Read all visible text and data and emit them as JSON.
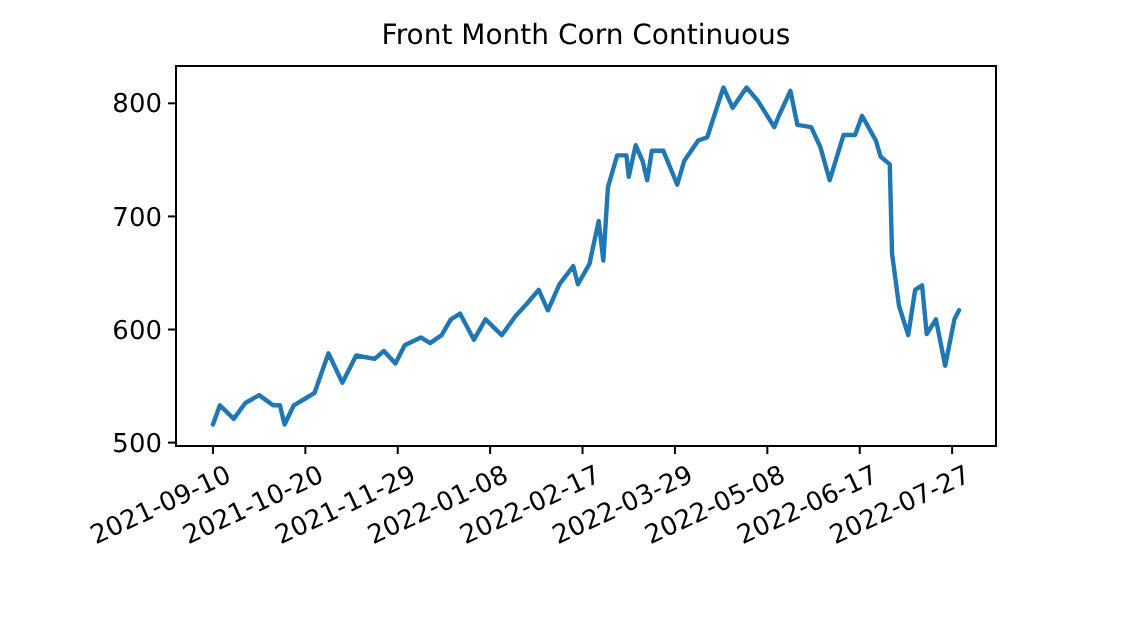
{
  "chart_data": {
    "type": "line",
    "title": "Front Month Corn Continuous",
    "x": [
      "2021-09-10",
      "2021-09-13",
      "2021-09-19",
      "2021-09-24",
      "2021-09-30",
      "2021-10-06",
      "2021-10-09",
      "2021-10-11",
      "2021-10-15",
      "2021-10-20",
      "2021-10-24",
      "2021-10-30",
      "2021-11-05",
      "2021-11-11",
      "2021-11-19",
      "2021-11-23",
      "2021-11-28",
      "2021-12-02",
      "2021-12-09",
      "2021-12-13",
      "2021-12-18",
      "2021-12-22",
      "2021-12-26",
      "2022-01-01",
      "2022-01-06",
      "2022-01-13",
      "2022-01-19",
      "2022-01-24",
      "2022-01-29",
      "2022-02-02",
      "2022-02-07",
      "2022-02-13",
      "2022-02-15",
      "2022-02-20",
      "2022-02-24",
      "2022-02-26",
      "2022-02-28",
      "2022-03-04",
      "2022-03-08",
      "2022-03-09",
      "2022-03-12",
      "2022-03-15",
      "2022-03-17",
      "2022-03-19",
      "2022-03-24",
      "2022-03-30",
      "2022-04-02",
      "2022-04-08",
      "2022-04-12",
      "2022-04-15",
      "2022-04-19",
      "2022-04-23",
      "2022-04-29",
      "2022-05-04",
      "2022-05-11",
      "2022-05-13",
      "2022-05-18",
      "2022-05-21",
      "2022-05-27",
      "2022-05-31",
      "2022-06-04",
      "2022-06-10",
      "2022-06-15",
      "2022-06-18",
      "2022-06-24",
      "2022-06-26",
      "2022-06-30",
      "2022-07-01",
      "2022-07-04",
      "2022-07-08",
      "2022-07-11",
      "2022-07-14",
      "2022-07-16",
      "2022-07-20",
      "2022-07-24",
      "2022-07-28",
      "2022-07-30"
    ],
    "series": [
      {
        "color": "#1f77b4",
        "values": [
          516,
          533,
          521,
          535,
          542,
          533,
          533,
          516,
          533,
          539,
          544,
          579,
          553,
          577,
          574,
          581,
          570,
          586,
          593,
          588,
          595,
          609,
          614,
          591,
          609,
          595,
          612,
          623,
          635,
          617,
          640,
          656,
          640,
          658,
          696,
          661,
          726,
          754,
          754,
          735,
          763,
          749,
          732,
          758,
          758,
          728,
          749,
          767,
          770,
          789,
          814,
          796,
          814,
          802,
          779,
          789,
          811,
          781,
          779,
          761,
          732,
          772,
          772,
          789,
          767,
          753,
          746,
          667,
          621,
          595,
          635,
          639,
          596,
          609,
          568,
          609,
          617
        ]
      }
    ],
    "xlim": [
      "2021-08-25",
      "2022-08-15"
    ],
    "xticks": [
      {
        "value": "2021-09-10",
        "label": "2021-09-10"
      },
      {
        "value": "2021-10-20",
        "label": "2021-10-20"
      },
      {
        "value": "2021-11-29",
        "label": "2021-11-29"
      },
      {
        "value": "2022-01-08",
        "label": "2022-01-08"
      },
      {
        "value": "2022-02-17",
        "label": "2022-02-17"
      },
      {
        "value": "2022-03-29",
        "label": "2022-03-29"
      },
      {
        "value": "2022-05-08",
        "label": "2022-05-08"
      },
      {
        "value": "2022-06-17",
        "label": "2022-06-17"
      },
      {
        "value": "2022-07-27",
        "label": "2022-07-27"
      }
    ],
    "ylim": [
      497,
      833
    ],
    "yticks": [
      500,
      600,
      700,
      800
    ],
    "grid": false,
    "marker": "none",
    "line_style": "solid"
  }
}
